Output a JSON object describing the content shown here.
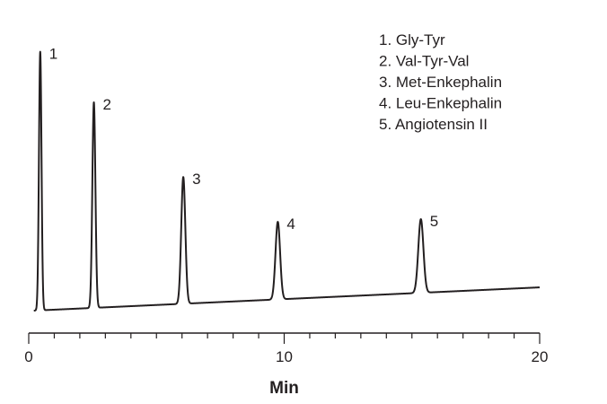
{
  "chart_data": {
    "type": "line",
    "title": "",
    "xlabel": "Min",
    "ylabel": "",
    "xlim": [
      0,
      20
    ],
    "x_major_ticks": [
      0,
      10,
      20
    ],
    "x_minor_step": 1,
    "x_tick_labels": [
      "0",
      "10",
      "20"
    ],
    "grid": false,
    "legend_position": "top-right",
    "line_color": "#231f20",
    "baseline": {
      "x": [
        0.2,
        20
      ],
      "y": [
        0.0,
        0.09
      ]
    },
    "peaks": [
      {
        "label": "1",
        "name": "Gly-Tyr",
        "x": 0.45,
        "height": 1.0,
        "width": 0.05
      },
      {
        "label": "2",
        "name": "Val-Tyr-Val",
        "x": 2.55,
        "height": 0.795,
        "width": 0.06
      },
      {
        "label": "3",
        "name": "Met-Enkephalin",
        "x": 6.05,
        "height": 0.49,
        "width": 0.08
      },
      {
        "label": "4",
        "name": "Leu-Enkephalin",
        "x": 9.75,
        "height": 0.3,
        "width": 0.09
      },
      {
        "label": "5",
        "name": "Angiotensin II",
        "x": 15.35,
        "height": 0.285,
        "width": 0.1
      }
    ],
    "legend": [
      "1. Gly-Tyr",
      "2. Val-Tyr-Val",
      "3. Met-Enkephalin",
      "4. Leu-Enkephalin",
      "5. Angiotensin II"
    ]
  }
}
